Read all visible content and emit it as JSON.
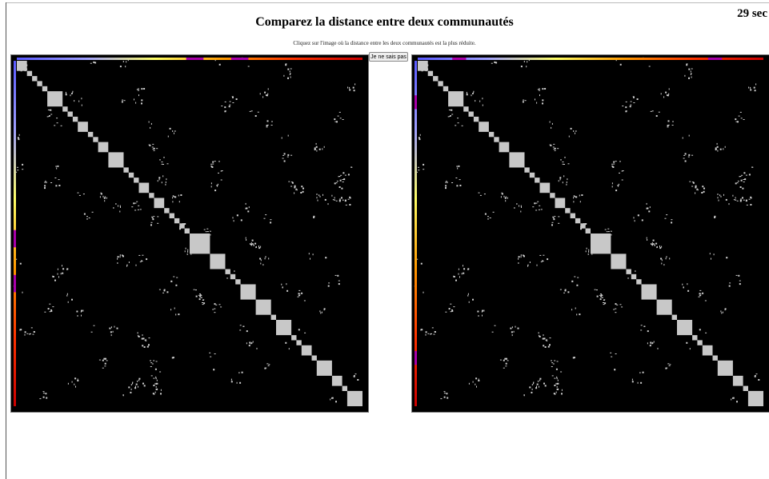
{
  "header": {
    "title": "Comparez la distance entre deux communautés",
    "timer": "29 sec",
    "instruction": "Cliquez sur l'image où la distance entre les deux communautés est la plus réduite."
  },
  "controls": {
    "dont_know_label": "Je ne sais pas"
  },
  "colors": {
    "matrix_background": "#000000",
    "block_color": "#c8c8c8",
    "dot_color": "#d0d0d0",
    "bar_gradient": [
      "#5a5aff",
      "#a0a0ff",
      "#ffff66",
      "#ff9900",
      "#ff3300",
      "#cc0000"
    ],
    "highlight_left": "#aa00aa",
    "highlight_right": "#aa00aa"
  },
  "matrices": [
    {
      "id": "left",
      "highlights_top": [
        [
          0.49,
          0.54
        ],
        [
          0.62,
          0.67
        ]
      ],
      "highlights_side": [
        [
          0.49,
          0.54
        ],
        [
          0.62,
          0.67
        ]
      ]
    },
    {
      "id": "right",
      "highlights_top": [
        [
          0.1,
          0.14
        ],
        [
          0.84,
          0.88
        ]
      ],
      "highlights_side": [
        [
          0.1,
          0.14
        ],
        [
          0.84,
          0.88
        ]
      ]
    }
  ]
}
